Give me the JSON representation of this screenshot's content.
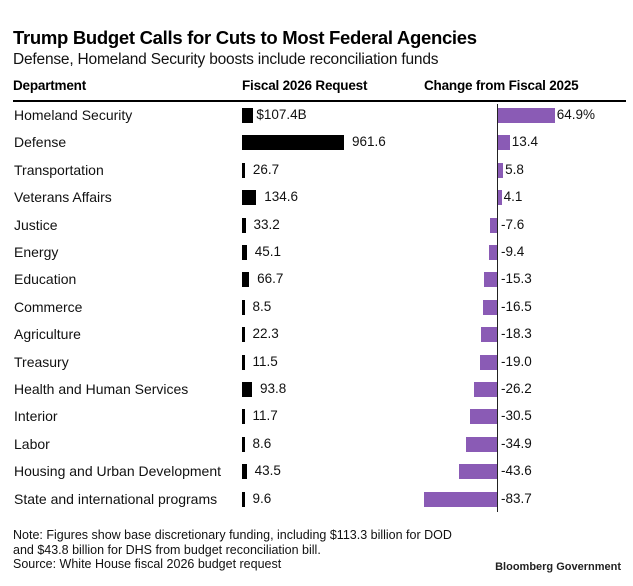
{
  "chart_data": {
    "type": "bar",
    "title": "Trump Budget Calls for Cuts to Most Federal Agencies",
    "subtitle": "Defense, Homeland Security boosts include reconciliation funds",
    "columns": [
      "Department",
      "Fiscal 2026 Request",
      "Change from Fiscal 2025"
    ],
    "categories": [
      "Homeland Security",
      "Defense",
      "Transportation",
      "Veterans Affairs",
      "Justice",
      "Energy",
      "Education",
      "Commerce",
      "Agriculture",
      "Treasury",
      "Health and Human Services",
      "Interior",
      "Labor",
      "Housing and Urban Development",
      "State and international programs"
    ],
    "series": [
      {
        "name": "Fiscal 2026 Request",
        "unit": "$B",
        "values": [
          107.4,
          961.6,
          26.7,
          134.6,
          33.2,
          45.1,
          66.7,
          8.5,
          22.3,
          11.5,
          93.8,
          11.7,
          8.6,
          43.5,
          9.6
        ],
        "labels": [
          "$107.4B",
          "961.6",
          "26.7",
          "134.6",
          "33.2",
          "45.1",
          "66.7",
          "8.5",
          "22.3",
          "11.5",
          "93.8",
          "11.7",
          "8.6",
          "43.5",
          "9.6"
        ],
        "color": "#000000"
      },
      {
        "name": "Change from Fiscal 2025",
        "unit": "%",
        "values": [
          64.9,
          13.4,
          5.8,
          4.1,
          -7.6,
          -9.4,
          -15.3,
          -16.5,
          -18.3,
          -19.0,
          -26.2,
          -30.5,
          -34.9,
          -43.6,
          -83.7
        ],
        "labels": [
          "64.9%",
          "13.4",
          "5.8",
          "4.1",
          "-7.6",
          "-9.4",
          "-15.3",
          "-16.5",
          "-18.3",
          "-19.0",
          "-26.2",
          "-30.5",
          "-34.9",
          "-43.6",
          "-83.7"
        ],
        "color": "#8a5bb5"
      }
    ],
    "note": "Note: Figures show base discretionary funding, including $113.3 billion for DOD and $43.8 billion for DHS from budget reconciliation bill.",
    "source": "Source: White House fiscal 2026 budget request",
    "brand": "Bloomberg Government"
  },
  "note_lines": [
    "Note: Figures show base discretionary funding, including $113.3 billion for DOD",
    "and $43.8 billion for DHS from budget reconciliation bill.",
    "Source: White House fiscal 2026 budget request"
  ]
}
